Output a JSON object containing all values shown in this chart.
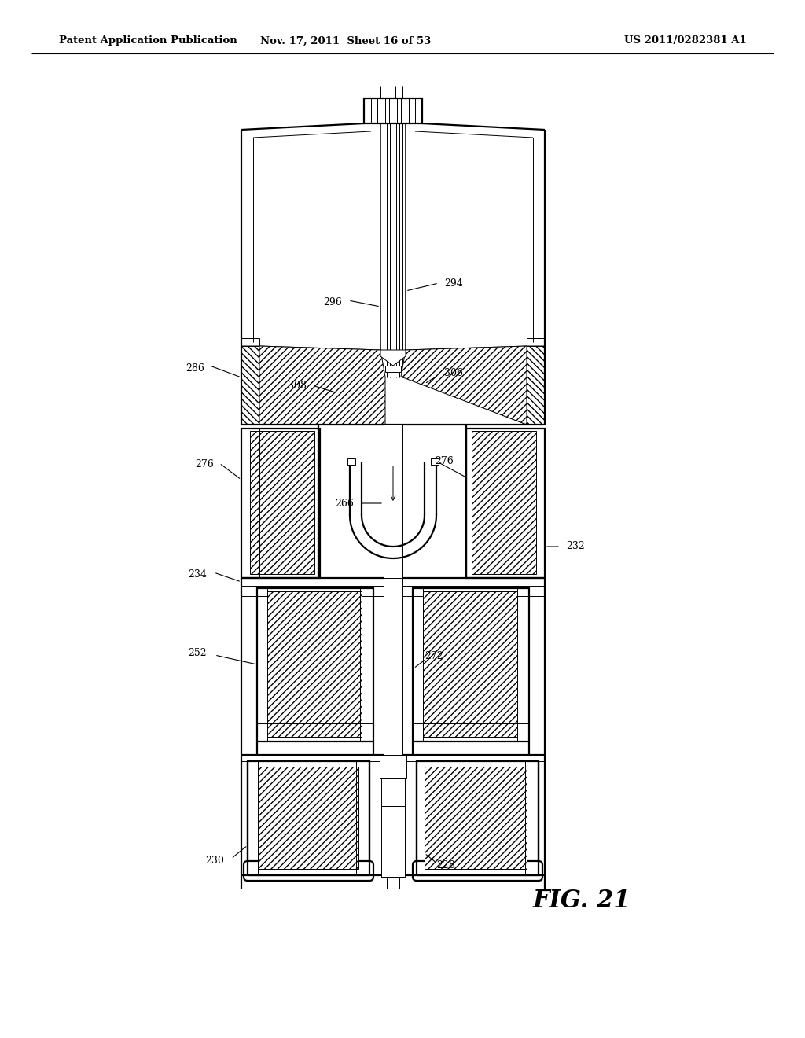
{
  "background": "#ffffff",
  "line_color": "#000000",
  "header_left": "Patent Application Publication",
  "header_center": "Nov. 17, 2011  Sheet 16 of 53",
  "header_right": "US 2011/0282381 A1",
  "fig_label": "FIG. 21",
  "lw_main": 1.6,
  "lw_med": 1.1,
  "lw_thin": 0.7,
  "font_size_header": 9.5,
  "font_size_label": 9,
  "font_size_fig": 22
}
